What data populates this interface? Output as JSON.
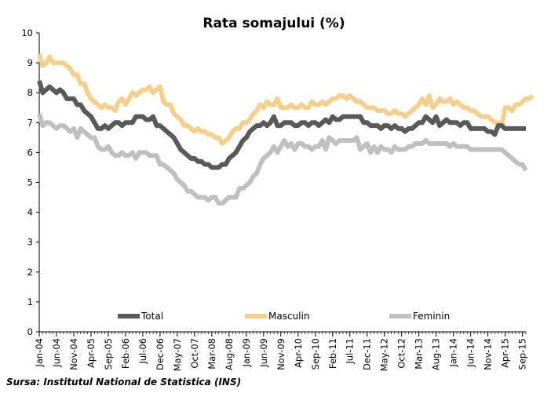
{
  "chart_data": {
    "type": "line",
    "title": "Rata somajului (%)",
    "xlabel": "",
    "ylabel": "",
    "ylim": [
      0,
      10
    ],
    "yticks": [
      "0",
      "1",
      "2",
      "3",
      "4",
      "5",
      "6",
      "7",
      "8",
      "9",
      "10"
    ],
    "x_start": "Jan-04",
    "x_end": "Sep-15",
    "x_ticks": [
      "Jan-04",
      "Jun-04",
      "Nov-04",
      "Apr-05",
      "Sep-05",
      "Feb-06",
      "Jul-06",
      "Dec-06",
      "May-07",
      "Oct-07",
      "Mar-08",
      "Aug-08",
      "Jan-09",
      "Jun-09",
      "Nov-09",
      "Apr-10",
      "Sep-10",
      "Feb-11",
      "Jul-11",
      "Dec-11",
      "May-12",
      "Oct-12",
      "Mar-13",
      "Aug-13",
      "Jan-14",
      "Jun-14",
      "Nov-14",
      "Apr-15",
      "Sep-15"
    ],
    "legend_position": "bottom",
    "grid": false,
    "series": [
      {
        "name": "Total",
        "color": "#595959",
        "values": [
          8.4,
          8.0,
          8.1,
          8.2,
          8.1,
          8.0,
          8.1,
          8.0,
          7.8,
          7.8,
          7.8,
          7.6,
          7.6,
          7.4,
          7.3,
          7.2,
          7.0,
          6.8,
          6.8,
          6.9,
          6.8,
          6.9,
          7.0,
          7.0,
          6.9,
          7.0,
          7.0,
          7.0,
          7.2,
          7.2,
          7.2,
          7.1,
          7.1,
          7.2,
          6.9,
          6.9,
          6.8,
          6.7,
          6.6,
          6.5,
          6.3,
          6.1,
          6.0,
          5.9,
          5.8,
          5.8,
          5.7,
          5.7,
          5.6,
          5.6,
          5.5,
          5.5,
          5.5,
          5.6,
          5.6,
          5.8,
          5.9,
          6.0,
          6.2,
          6.4,
          6.5,
          6.7,
          6.8,
          6.9,
          6.9,
          7.0,
          6.9,
          7.0,
          7.2,
          6.9,
          6.9,
          7.0,
          7.0,
          7.0,
          6.9,
          6.9,
          7.0,
          7.0,
          6.9,
          7.0,
          7.0,
          6.9,
          7.0,
          7.1,
          7.0,
          7.2,
          7.1,
          7.1,
          7.2,
          7.2,
          7.2,
          7.2,
          7.2,
          7.2,
          7.0,
          7.0,
          6.9,
          6.9,
          6.9,
          6.8,
          6.9,
          6.9,
          6.8,
          6.9,
          6.8,
          6.8,
          6.7,
          6.8,
          6.8,
          6.9,
          7.0,
          7.0,
          7.2,
          7.1,
          7.0,
          7.2,
          6.9,
          7.0,
          7.1,
          7.0,
          7.0,
          7.0,
          6.9,
          7.0,
          7.0,
          6.8,
          6.8,
          6.8,
          6.8,
          6.8,
          6.7,
          6.7,
          6.6,
          6.9,
          6.9,
          6.8,
          6.8,
          6.8,
          6.8,
          6.8,
          6.8,
          6.8
        ]
      },
      {
        "name": "Masculin",
        "color": "#f5d08c",
        "values": [
          9.3,
          8.9,
          9.0,
          9.2,
          9.0,
          9.0,
          9.0,
          9.0,
          8.9,
          8.8,
          8.6,
          8.6,
          8.3,
          8.3,
          8.0,
          7.8,
          7.7,
          7.6,
          7.5,
          7.6,
          7.5,
          7.5,
          7.4,
          7.7,
          7.8,
          7.6,
          7.8,
          8.0,
          7.9,
          8.0,
          8.1,
          8.1,
          8.2,
          8.0,
          8.1,
          8.2,
          7.7,
          7.6,
          7.6,
          7.3,
          7.2,
          7.1,
          6.9,
          6.9,
          6.8,
          6.7,
          6.8,
          6.7,
          6.7,
          6.6,
          6.6,
          6.5,
          6.5,
          6.3,
          6.4,
          6.5,
          6.7,
          6.8,
          6.8,
          7.0,
          7.0,
          7.1,
          7.3,
          7.4,
          7.6,
          7.5,
          7.7,
          7.6,
          7.6,
          7.8,
          7.5,
          7.5,
          7.5,
          7.6,
          7.5,
          7.5,
          7.6,
          7.5,
          7.5,
          7.7,
          7.6,
          7.6,
          7.7,
          7.6,
          7.7,
          7.8,
          7.8,
          7.9,
          7.9,
          7.8,
          7.9,
          7.8,
          7.7,
          7.7,
          7.6,
          7.5,
          7.5,
          7.5,
          7.4,
          7.4,
          7.4,
          7.3,
          7.3,
          7.4,
          7.3,
          7.3,
          7.2,
          7.3,
          7.4,
          7.5,
          7.6,
          7.8,
          7.6,
          7.9,
          7.5,
          7.6,
          7.8,
          7.7,
          7.7,
          7.8,
          7.6,
          7.7,
          7.6,
          7.5,
          7.5,
          7.4,
          7.4,
          7.3,
          7.2,
          7.2,
          7.2,
          7.1,
          7.0,
          7.0,
          6.9,
          7.5,
          7.5,
          7.4,
          7.6,
          7.6,
          7.7,
          7.8,
          7.8,
          7.9
        ]
      },
      {
        "name": "Feminin",
        "color": "#c0c0c0",
        "values": [
          7.3,
          6.9,
          7.0,
          7.0,
          6.9,
          6.8,
          6.9,
          6.9,
          6.8,
          6.7,
          6.8,
          6.5,
          6.8,
          6.7,
          6.6,
          6.5,
          6.5,
          6.2,
          6.1,
          6.1,
          6.2,
          6.0,
          5.9,
          5.9,
          6.0,
          5.9,
          5.9,
          6.0,
          5.8,
          6.0,
          6.0,
          6.0,
          5.9,
          5.9,
          5.9,
          5.6,
          5.6,
          5.5,
          5.4,
          5.3,
          5.1,
          5.0,
          4.9,
          4.7,
          4.7,
          4.6,
          4.5,
          4.5,
          4.5,
          4.4,
          4.5,
          4.5,
          4.3,
          4.3,
          4.4,
          4.5,
          4.5,
          4.5,
          4.8,
          4.8,
          4.9,
          5.0,
          5.2,
          5.3,
          5.6,
          5.8,
          5.9,
          6.0,
          6.2,
          6.0,
          6.2,
          6.4,
          6.2,
          6.3,
          6.1,
          6.3,
          6.3,
          6.2,
          6.2,
          6.1,
          6.2,
          6.2,
          6.4,
          6.1,
          6.5,
          6.4,
          6.3,
          6.4,
          6.4,
          6.4,
          6.4,
          6.4,
          6.5,
          6.1,
          6.2,
          6.3,
          6.0,
          6.2,
          6.0,
          6.2,
          6.1,
          6.1,
          6.0,
          6.2,
          6.1,
          6.1,
          6.1,
          6.2,
          6.2,
          6.3,
          6.3,
          6.3,
          6.4,
          6.3,
          6.3,
          6.3,
          6.3,
          6.3,
          6.3,
          6.2,
          6.3,
          6.2,
          6.2,
          6.2,
          6.2,
          6.1,
          6.1,
          6.1,
          6.1,
          6.1,
          6.1,
          6.1,
          6.1,
          6.1,
          6.1,
          6.0,
          5.9,
          5.8,
          5.7,
          5.6,
          5.6,
          5.4
        ]
      }
    ]
  },
  "source": "Sursa: Institutul National de Statistica (INS)"
}
